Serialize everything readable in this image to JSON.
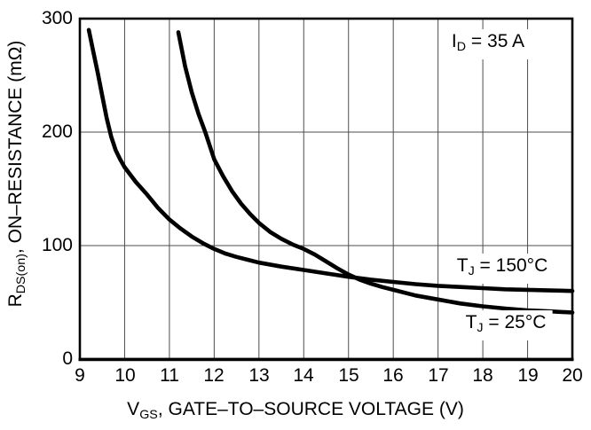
{
  "chart_data": {
    "type": "line",
    "title": "",
    "grid": "on",
    "legend_position": "inline-right",
    "xlabel": {
      "base": "V",
      "sub": "GS",
      "rest": ", GATE–TO–SOURCE VOLTAGE (V)"
    },
    "ylabel": {
      "base": "R",
      "sub": "DS(on)",
      "rest": ", ON–RESISTANCE (mΩ)"
    },
    "annotation": {
      "base": "I",
      "sub": "D",
      "rest": " = 35 A"
    },
    "xlim": [
      9,
      20
    ],
    "ylim": [
      0,
      300
    ],
    "xticks": [
      "9",
      "10",
      "11",
      "12",
      "13",
      "14",
      "15",
      "16",
      "17",
      "18",
      "19",
      "20"
    ],
    "yticks": [
      "0",
      "100",
      "200",
      "300"
    ],
    "colors": {
      "curve": "#000000",
      "grid": "#4d4d4d",
      "frame": "#000000",
      "text": "#000000",
      "background": "#ffffff"
    },
    "series": [
      {
        "label": {
          "base": "T",
          "sub": "J",
          "rest": " = 150°C"
        },
        "x": [
          9.2,
          9.3,
          9.4,
          9.5,
          9.6,
          9.7,
          9.8,
          9.9,
          10,
          10.25,
          10.5,
          10.75,
          11,
          11.25,
          11.5,
          11.75,
          12,
          12.25,
          12.5,
          12.75,
          13,
          13.5,
          14,
          14.5,
          15,
          15.5,
          16,
          16.5,
          17,
          17.5,
          18,
          18.5,
          19,
          19.5,
          20
        ],
        "y": [
          290,
          271,
          252,
          232,
          212,
          196,
          184,
          176,
          169,
          156,
          145,
          133,
          123,
          115,
          108,
          102,
          97,
          93,
          90,
          87.5,
          85,
          81.5,
          78.5,
          75.5,
          72.5,
          70,
          68,
          66,
          64.5,
          63.5,
          62.5,
          61.5,
          61,
          60.5,
          60
        ]
      },
      {
        "label": {
          "base": "T",
          "sub": "J",
          "rest": " = 25°C"
        },
        "x": [
          11.2,
          11.35,
          11.5,
          11.65,
          11.8,
          12,
          12.2,
          12.4,
          12.6,
          12.8,
          13,
          13.25,
          13.5,
          13.75,
          14,
          14.25,
          14.5,
          14.75,
          15,
          15.25,
          15.5,
          15.75,
          16,
          16.5,
          17,
          17.5,
          18,
          18.5,
          19,
          19.5,
          20
        ],
        "y": [
          288,
          258,
          235,
          216,
          200,
          176,
          161,
          148,
          137,
          128,
          120,
          112,
          106,
          101,
          97,
          92,
          86,
          80,
          74.5,
          70,
          66.5,
          63.5,
          61,
          56,
          52.5,
          49,
          46.5,
          44.5,
          43,
          42,
          41
        ]
      }
    ]
  }
}
